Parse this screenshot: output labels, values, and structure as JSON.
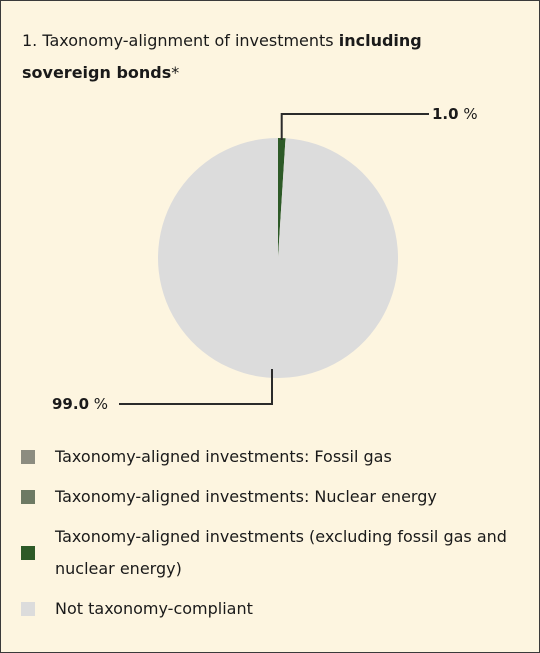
{
  "title": {
    "prefix": "1. Taxonomy-alignment of investments ",
    "bold": "including sovereign bonds",
    "suffix": "*"
  },
  "chart_data": {
    "type": "pie",
    "slices": [
      {
        "label": "Taxonomy-aligned investments (excluding fossil gas and nuclear energy)",
        "value": 1.0,
        "value_label": "1.0 %",
        "color": "#2d5a27"
      },
      {
        "label": "Not taxonomy-compliant",
        "value": 99.0,
        "value_label": "99.0 %",
        "color": "#dcdcdc"
      }
    ],
    "legend": [
      {
        "label": "Taxonomy-aligned investments: Fossil gas",
        "color": "#8c8c80"
      },
      {
        "label": "Taxonomy-aligned investments: Nuclear energy",
        "color": "#6d7a64"
      },
      {
        "label": "Taxonomy-aligned investments (excluding fossil gas and nuclear energy)",
        "color": "#2d5a27"
      },
      {
        "label": "Not taxonomy-compliant",
        "color": "#dcdcdc"
      }
    ]
  }
}
